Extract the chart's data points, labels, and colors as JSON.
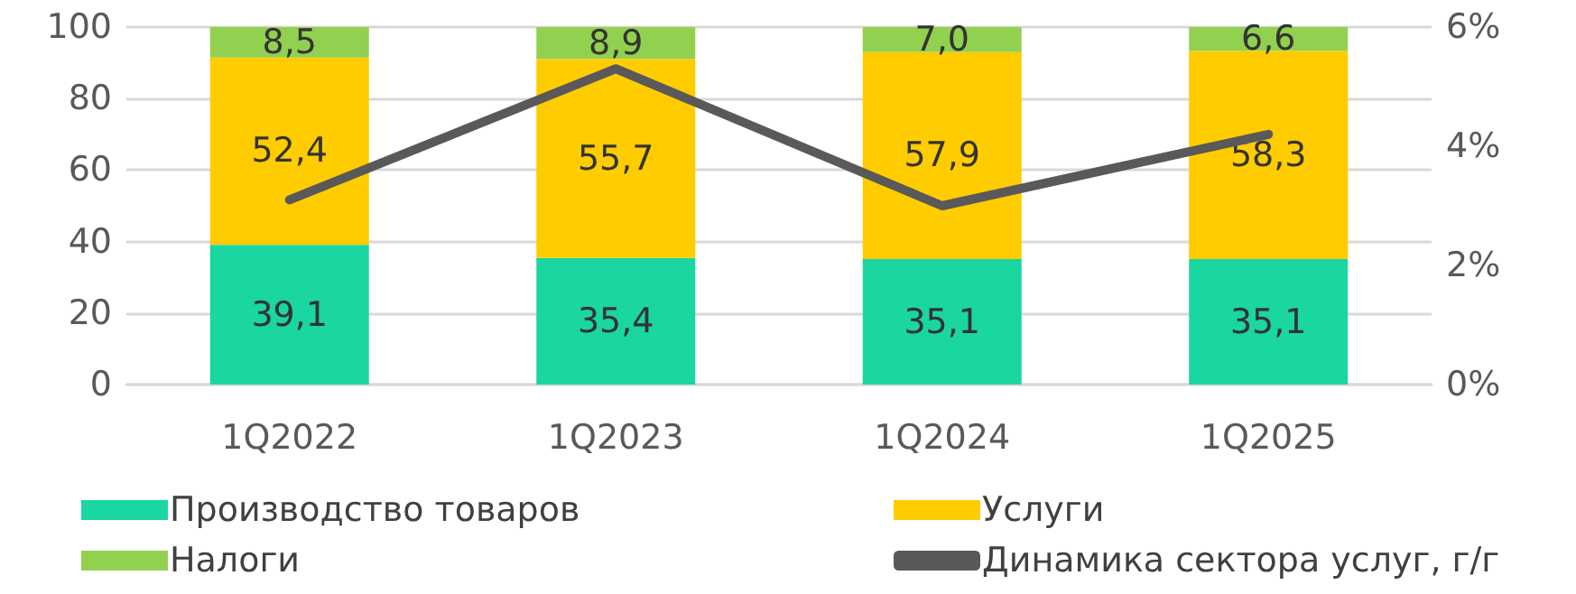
{
  "chart_data": {
    "type": "bar",
    "stacked": true,
    "categories": [
      "1Q2022",
      "1Q2023",
      "1Q2024",
      "1Q2025"
    ],
    "series": [
      {
        "name": "Производство товаров",
        "color": "#1ad6a0",
        "values": [
          39.1,
          35.4,
          35.1,
          35.1
        ],
        "value_labels": [
          "39,1",
          "35,4",
          "35,1",
          "35,1"
        ]
      },
      {
        "name": "Услуги",
        "color": "#ffcc00",
        "values": [
          52.4,
          55.7,
          57.9,
          58.3
        ],
        "value_labels": [
          "52,4",
          "55,7",
          "57,9",
          "58,3"
        ]
      },
      {
        "name": "Налоги",
        "color": "#92d050",
        "values": [
          8.5,
          8.9,
          7.0,
          6.6
        ],
        "value_labels": [
          "8,5",
          "8,9",
          "7,0",
          "6,6"
        ]
      },
      {
        "name": "Динамика сектора услуг, г/г",
        "type": "line",
        "axis": "y2",
        "color": "#595959",
        "values": [
          3.1,
          5.3,
          3.0,
          4.2
        ]
      }
    ],
    "ylim": [
      0,
      100
    ],
    "yticks": [
      0,
      20,
      40,
      60,
      80,
      100
    ],
    "y2lim": [
      0,
      6
    ],
    "y2ticks": [
      {
        "value": 0,
        "label": "0%"
      },
      {
        "value": 2,
        "label": "2%"
      },
      {
        "value": 4,
        "label": "4%"
      },
      {
        "value": 6,
        "label": "6%"
      }
    ],
    "grid": "y",
    "legend": "bottom",
    "marker": "none"
  }
}
